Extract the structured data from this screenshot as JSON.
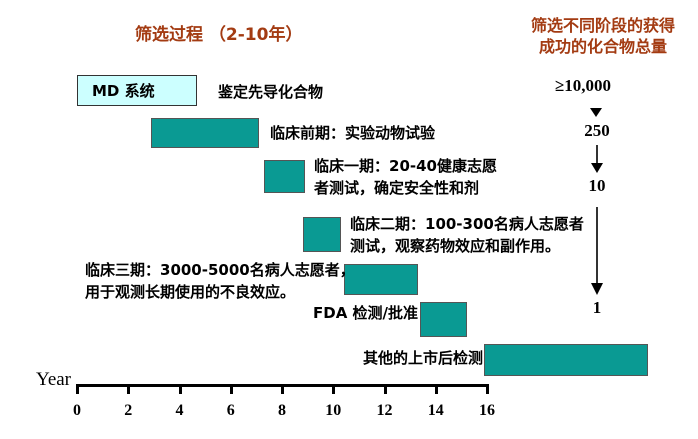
{
  "titles": {
    "process": "筛选过程 （2-10年）",
    "funnel_line1": "筛选不同阶段的获得",
    "funnel_line2": "成功的化合物总量"
  },
  "stages": [
    {
      "name": "lead-identification",
      "box_label": "MD 系统",
      "label": "鉴定先导化合物",
      "year_start": 0,
      "year_end": 4.7
    },
    {
      "name": "preclinical",
      "label": "临床前期：实验动物试验",
      "year_start": 2.9,
      "year_end": 7.1
    },
    {
      "name": "phase1",
      "label": "临床一期：20-40健康志愿\n者测试，确定安全性和剂",
      "year_start": 7.3,
      "year_end": 8.9
    },
    {
      "name": "phase2",
      "label": "临床二期：100-300名病人志愿者\n测试，观察药物效应和副作用。",
      "year_start": 8.8,
      "year_end": 10.3
    },
    {
      "name": "phase3",
      "label": "临床三期：3000-5000名病人志愿者，\n用于观测长期使用的不良效应。",
      "year_start": 10.4,
      "year_end": 13.3
    },
    {
      "name": "fda-review",
      "label": "FDA 检测/批准",
      "year_start": 13.4,
      "year_end": 15.2
    },
    {
      "name": "post-market",
      "label": "其他的上市后检测",
      "year_start": 15.9,
      "year_end": 22.3
    }
  ],
  "counts": [
    "≥10,000",
    "250",
    "10",
    "1"
  ],
  "axis": {
    "label": "Year",
    "ticks": [
      "0",
      "2",
      "4",
      "6",
      "8",
      "10",
      "12",
      "14",
      "16"
    ]
  },
  "colors": {
    "bar_fill": "#0A9A93",
    "title_red": "#A33B12",
    "md_box_fill": "#CCFFFF"
  },
  "chart_data": {
    "type": "bar",
    "title": "筛选过程 （2-10年）",
    "xlabel": "Year",
    "xlim": [
      0,
      16
    ],
    "x_ticks": [
      0,
      2,
      4,
      6,
      8,
      10,
      12,
      14,
      16
    ],
    "bars": [
      {
        "label": "MD 系统 / 鉴定先导化合物",
        "start": 0,
        "end": 4.7
      },
      {
        "label": "临床前期：实验动物试验",
        "start": 2.9,
        "end": 7.1
      },
      {
        "label": "临床一期：20-40健康志愿者测试，确定安全性和剂",
        "start": 7.3,
        "end": 8.9
      },
      {
        "label": "临床二期：100-300名病人志愿者测试，观察药物效应和副作用。",
        "start": 8.8,
        "end": 10.3
      },
      {
        "label": "临床三期：3000-5000名病人志愿者，用于观测长期使用的不良效应。",
        "start": 10.4,
        "end": 13.3
      },
      {
        "label": "FDA 检测/批准",
        "start": 13.4,
        "end": 15.2
      },
      {
        "label": "其他的上市后检测",
        "start": 15.9,
        "end": 22.3
      }
    ],
    "funnel_counts": [
      "≥10,000",
      "250",
      "10",
      "1"
    ]
  }
}
